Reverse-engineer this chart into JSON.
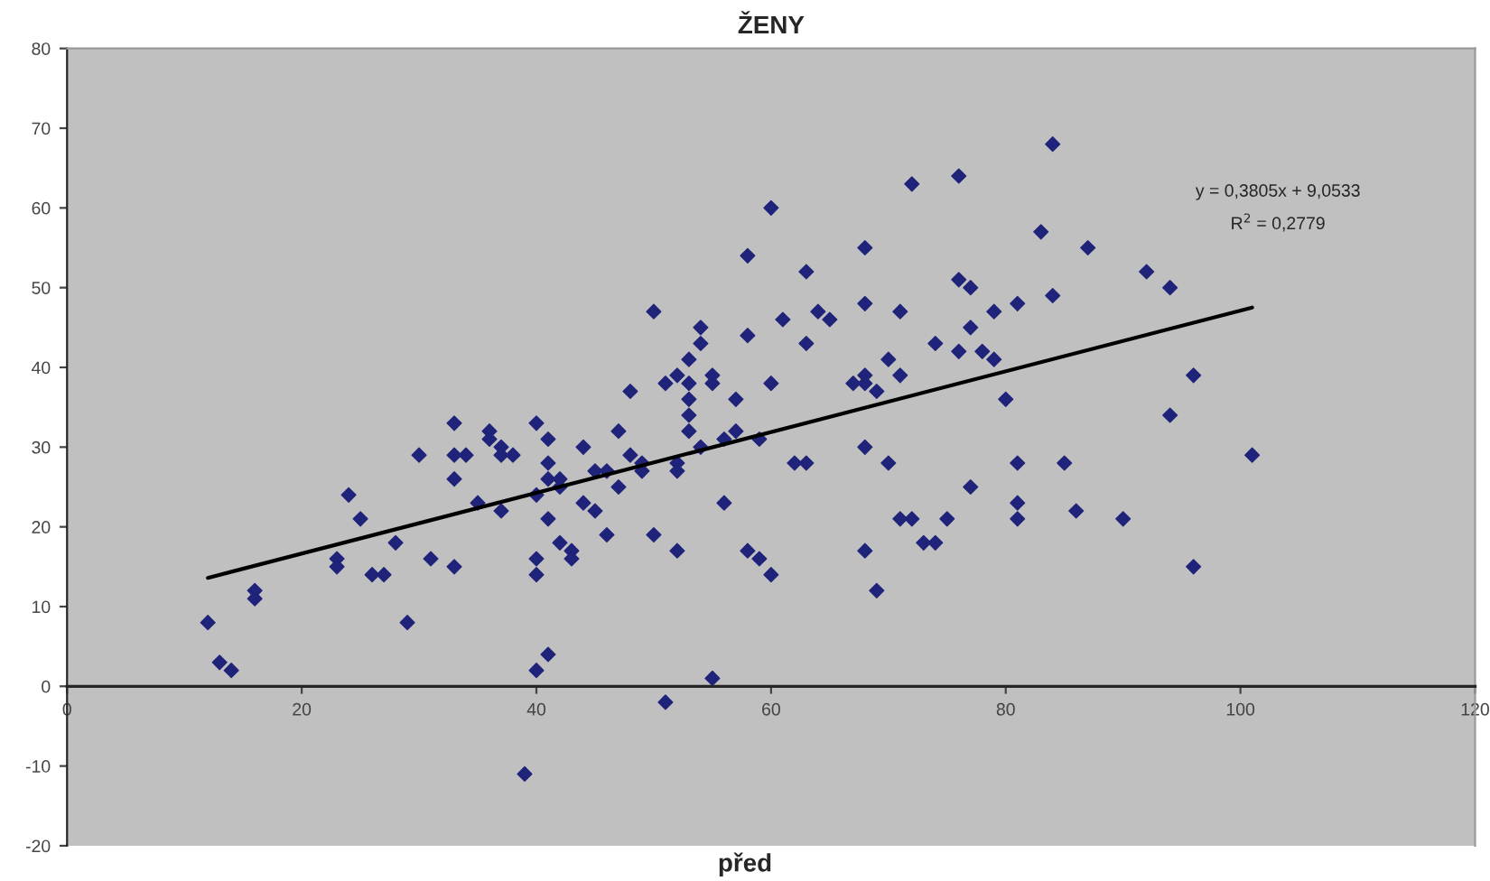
{
  "chart_data": {
    "type": "scatter",
    "title": "ŽENY",
    "xlabel": "před",
    "xlim": [
      0,
      120
    ],
    "xticks": [
      0,
      20,
      40,
      60,
      80,
      100,
      120
    ],
    "ylim": [
      -20,
      80
    ],
    "yticks": [
      -20,
      -10,
      0,
      10,
      20,
      30,
      40,
      50,
      60,
      70,
      80
    ],
    "grid": false,
    "annotations": [
      "y = 0,3805x + 9,0533",
      "R$^{2}$ = 0,2779"
    ],
    "series": [
      {
        "marker": "diamond",
        "color": "#1f237a",
        "x": [
          12,
          13,
          14,
          16,
          16,
          23,
          23,
          24,
          25,
          26,
          27,
          28,
          29,
          30,
          31,
          33,
          33,
          33,
          33,
          34,
          35,
          36,
          36,
          37,
          37,
          37,
          38,
          40,
          40,
          40,
          40,
          40,
          39,
          41,
          41,
          41,
          41,
          41,
          42,
          42,
          42,
          43,
          43,
          44,
          44,
          45,
          45,
          46,
          46,
          47,
          47,
          48,
          48,
          49,
          49,
          50,
          50,
          51,
          51,
          52,
          52,
          52,
          52,
          53,
          53,
          53,
          53,
          53,
          54,
          54,
          54,
          55,
          55,
          55,
          56,
          56,
          57,
          57,
          58,
          58,
          58,
          59,
          59,
          60,
          60,
          60,
          61,
          62,
          63,
          63,
          63,
          64,
          65,
          67,
          68,
          68,
          68,
          68,
          68,
          68,
          69,
          69,
          70,
          70,
          71,
          71,
          71,
          72,
          72,
          73,
          74,
          74,
          75,
          76,
          76,
          76,
          77,
          77,
          77,
          78,
          79,
          79,
          80,
          81,
          81,
          81,
          81,
          83,
          84,
          84,
          85,
          86,
          87,
          90,
          92,
          94,
          94,
          96,
          96,
          101
        ],
        "values": [
          8,
          3,
          2,
          12,
          11,
          16,
          15,
          24,
          21,
          14,
          14,
          18,
          8,
          29,
          16,
          33,
          29,
          26,
          15,
          29,
          23,
          32,
          31,
          30,
          22,
          29,
          29,
          33,
          24,
          16,
          14,
          2,
          -11,
          31,
          28,
          26,
          21,
          4,
          26,
          25,
          18,
          17,
          16,
          30,
          23,
          22,
          27,
          27,
          19,
          32,
          25,
          29,
          37,
          27,
          28,
          47,
          19,
          38,
          -2,
          39,
          28,
          27,
          17,
          41,
          38,
          36,
          34,
          32,
          45,
          43,
          30,
          39,
          38,
          1,
          23,
          31,
          32,
          36,
          54,
          44,
          17,
          16,
          31,
          60,
          38,
          14,
          46,
          28,
          52,
          43,
          28,
          47,
          46,
          38,
          55,
          48,
          39,
          38,
          30,
          17,
          37,
          12,
          41,
          28,
          47,
          39,
          21,
          63,
          21,
          18,
          18,
          43,
          21,
          64,
          51,
          42,
          50,
          45,
          25,
          42,
          47,
          41,
          36,
          48,
          28,
          23,
          21,
          57,
          68,
          49,
          28,
          22,
          55,
          21,
          52,
          50,
          34,
          39,
          15,
          29
        ]
      },
      {
        "type": "line",
        "color": "#000000",
        "x": [
          12,
          101
        ],
        "values": [
          13.6,
          47.5
        ]
      }
    ]
  }
}
